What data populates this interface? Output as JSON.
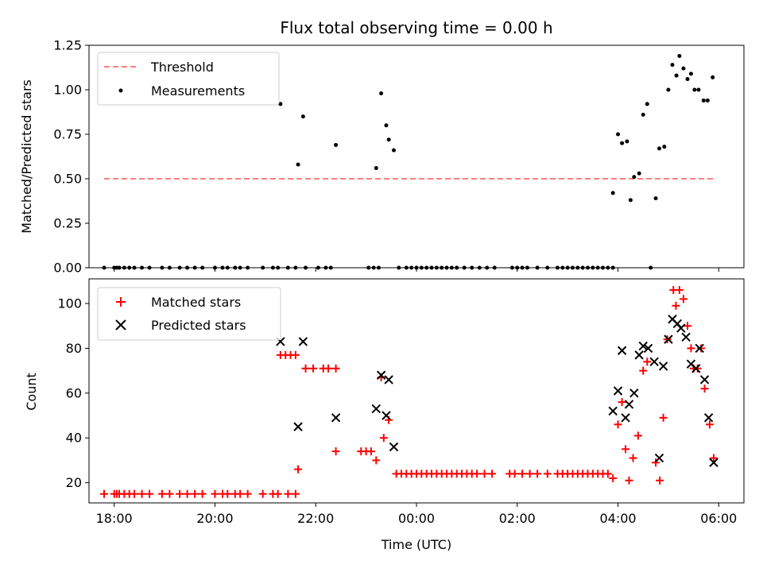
{
  "chart_data": [
    {
      "type": "scatter",
      "title": "Flux total observing time = 0.00 h",
      "ylabel": "Matched/Predicted stars",
      "xlabel": "",
      "xlim": [
        -6.5,
        6.5
      ],
      "ylim": [
        0,
        1.25
      ],
      "yticks": [
        0.0,
        0.25,
        0.5,
        0.75,
        1.0,
        1.25
      ],
      "ytick_labels": [
        "0.00",
        "0.25",
        "0.50",
        "0.75",
        "1.00",
        "1.25"
      ],
      "legend": [
        "Threshold",
        "Measurements"
      ],
      "legend_position": "top-left",
      "colors": {
        "threshold": "#ff7f7f",
        "measurements": "#000000"
      },
      "threshold": {
        "name": "Threshold",
        "y": 0.5,
        "x_range": [
          -6.2,
          5.9
        ]
      },
      "series": [
        {
          "name": "Measurements",
          "points": [
            [
              -6.2,
              0
            ],
            [
              -6.0,
              0
            ],
            [
              -5.95,
              0
            ],
            [
              -5.9,
              0
            ],
            [
              -5.8,
              0
            ],
            [
              -5.7,
              0
            ],
            [
              -5.6,
              0
            ],
            [
              -5.45,
              0
            ],
            [
              -5.3,
              0
            ],
            [
              -5.05,
              0
            ],
            [
              -4.9,
              0
            ],
            [
              -4.7,
              0
            ],
            [
              -4.55,
              0
            ],
            [
              -4.4,
              0
            ],
            [
              -4.25,
              0
            ],
            [
              -4.0,
              0
            ],
            [
              -3.85,
              0
            ],
            [
              -3.75,
              0
            ],
            [
              -3.6,
              0
            ],
            [
              -3.5,
              0
            ],
            [
              -3.35,
              0
            ],
            [
              -3.05,
              0
            ],
            [
              -2.85,
              0
            ],
            [
              -2.75,
              0
            ],
            [
              -2.55,
              0
            ],
            [
              -2.4,
              0
            ],
            [
              -2.2,
              0
            ],
            [
              -1.95,
              0
            ],
            [
              -1.8,
              0
            ],
            [
              -1.7,
              0
            ],
            [
              -2.7,
              0.92
            ],
            [
              -2.35,
              0.58
            ],
            [
              -2.25,
              0.85
            ],
            [
              -1.6,
              0.69
            ],
            [
              -0.95,
              0
            ],
            [
              -0.85,
              0
            ],
            [
              -0.75,
              0
            ],
            [
              -0.8,
              0.56
            ],
            [
              -0.7,
              0.98
            ],
            [
              -0.6,
              0.8
            ],
            [
              -0.55,
              0.72
            ],
            [
              -0.45,
              0.66
            ],
            [
              -0.35,
              0
            ],
            [
              -0.2,
              0
            ],
            [
              -0.1,
              0
            ],
            [
              0.0,
              0
            ],
            [
              0.1,
              0
            ],
            [
              0.2,
              0
            ],
            [
              0.3,
              0
            ],
            [
              0.4,
              0
            ],
            [
              0.5,
              0
            ],
            [
              0.6,
              0
            ],
            [
              0.7,
              0
            ],
            [
              0.8,
              0
            ],
            [
              0.95,
              0
            ],
            [
              1.1,
              0
            ],
            [
              1.25,
              0
            ],
            [
              1.4,
              0
            ],
            [
              1.55,
              0
            ],
            [
              1.9,
              0
            ],
            [
              2.0,
              0
            ],
            [
              2.1,
              0
            ],
            [
              2.2,
              0
            ],
            [
              2.4,
              0
            ],
            [
              2.6,
              0
            ],
            [
              2.8,
              0
            ],
            [
              2.9,
              0
            ],
            [
              3.0,
              0
            ],
            [
              3.1,
              0
            ],
            [
              3.2,
              0
            ],
            [
              3.3,
              0
            ],
            [
              3.4,
              0
            ],
            [
              3.5,
              0
            ],
            [
              3.6,
              0
            ],
            [
              3.7,
              0
            ],
            [
              3.8,
              0
            ],
            [
              3.9,
              0
            ],
            [
              3.9,
              0.42
            ],
            [
              4.0,
              0.75
            ],
            [
              4.08,
              0.7
            ],
            [
              4.18,
              0.71
            ],
            [
              4.25,
              0.38
            ],
            [
              4.32,
              0.51
            ],
            [
              4.42,
              0.53
            ],
            [
              4.5,
              0.86
            ],
            [
              4.58,
              0.92
            ],
            [
              4.65,
              0
            ],
            [
              4.75,
              0.39
            ],
            [
              4.82,
              0.67
            ],
            [
              4.92,
              0.68
            ],
            [
              5.0,
              1.0
            ],
            [
              5.08,
              1.14
            ],
            [
              5.16,
              1.08
            ],
            [
              5.22,
              1.19
            ],
            [
              5.3,
              1.12
            ],
            [
              5.38,
              1.06
            ],
            [
              5.45,
              1.09
            ],
            [
              5.52,
              1.0
            ],
            [
              5.6,
              1.0
            ],
            [
              5.7,
              0.94
            ],
            [
              5.78,
              0.94
            ],
            [
              5.88,
              1.07
            ]
          ]
        }
      ]
    },
    {
      "type": "scatter",
      "title": "",
      "xlabel": "Time (UTC)",
      "ylabel": "Count",
      "xlim": [
        -6.5,
        6.5
      ],
      "ylim": [
        11,
        111
      ],
      "xticks": [
        -6,
        -4,
        -2,
        0,
        2,
        4,
        6
      ],
      "xtick_labels": [
        "18:00",
        "20:00",
        "22:00",
        "00:00",
        "02:00",
        "04:00",
        "06:00"
      ],
      "yticks": [
        20,
        40,
        60,
        80,
        100
      ],
      "ytick_labels": [
        "20",
        "40",
        "60",
        "80",
        "100"
      ],
      "legend": [
        "Matched stars",
        "Predicted stars"
      ],
      "legend_position": "top-left",
      "colors": {
        "matched": "#ff0000",
        "predicted": "#000000"
      },
      "series": [
        {
          "name": "Matched stars",
          "marker": "+",
          "points": [
            [
              -6.2,
              15
            ],
            [
              -6.0,
              15
            ],
            [
              -5.95,
              15
            ],
            [
              -5.9,
              15
            ],
            [
              -5.8,
              15
            ],
            [
              -5.7,
              15
            ],
            [
              -5.6,
              15
            ],
            [
              -5.45,
              15
            ],
            [
              -5.3,
              15
            ],
            [
              -5.05,
              15
            ],
            [
              -4.9,
              15
            ],
            [
              -4.7,
              15
            ],
            [
              -4.55,
              15
            ],
            [
              -4.4,
              15
            ],
            [
              -4.25,
              15
            ],
            [
              -4.0,
              15
            ],
            [
              -3.85,
              15
            ],
            [
              -3.75,
              15
            ],
            [
              -3.6,
              15
            ],
            [
              -3.5,
              15
            ],
            [
              -3.35,
              15
            ],
            [
              -3.05,
              15
            ],
            [
              -2.85,
              15
            ],
            [
              -2.75,
              15
            ],
            [
              -2.55,
              15
            ],
            [
              -2.4,
              15
            ],
            [
              -2.7,
              77
            ],
            [
              -2.6,
              77
            ],
            [
              -2.5,
              77
            ],
            [
              -2.4,
              77
            ],
            [
              -2.35,
              26
            ],
            [
              -2.2,
              71
            ],
            [
              -2.05,
              71
            ],
            [
              -1.85,
              71
            ],
            [
              -1.75,
              71
            ],
            [
              -1.6,
              71
            ],
            [
              -1.6,
              34
            ],
            [
              -1.1,
              34
            ],
            [
              -1.0,
              34
            ],
            [
              -0.9,
              34
            ],
            [
              -0.8,
              30
            ],
            [
              -0.7,
              67
            ],
            [
              -0.65,
              40
            ],
            [
              -0.55,
              48
            ],
            [
              -0.4,
              24
            ],
            [
              -0.3,
              24
            ],
            [
              -0.2,
              24
            ],
            [
              -0.1,
              24
            ],
            [
              0.0,
              24
            ],
            [
              0.1,
              24
            ],
            [
              0.2,
              24
            ],
            [
              0.3,
              24
            ],
            [
              0.4,
              24
            ],
            [
              0.5,
              24
            ],
            [
              0.6,
              24
            ],
            [
              0.7,
              24
            ],
            [
              0.8,
              24
            ],
            [
              0.9,
              24
            ],
            [
              1.0,
              24
            ],
            [
              1.1,
              24
            ],
            [
              1.2,
              24
            ],
            [
              1.35,
              24
            ],
            [
              1.5,
              24
            ],
            [
              1.85,
              24
            ],
            [
              1.95,
              24
            ],
            [
              2.1,
              24
            ],
            [
              2.25,
              24
            ],
            [
              2.4,
              24
            ],
            [
              2.6,
              24
            ],
            [
              2.8,
              24
            ],
            [
              2.9,
              24
            ],
            [
              3.0,
              24
            ],
            [
              3.1,
              24
            ],
            [
              3.2,
              24
            ],
            [
              3.3,
              24
            ],
            [
              3.4,
              24
            ],
            [
              3.5,
              24
            ],
            [
              3.6,
              24
            ],
            [
              3.7,
              24
            ],
            [
              3.8,
              24
            ],
            [
              3.9,
              22
            ],
            [
              4.0,
              46
            ],
            [
              4.08,
              56
            ],
            [
              4.15,
              35
            ],
            [
              4.22,
              21
            ],
            [
              4.3,
              31
            ],
            [
              4.4,
              41
            ],
            [
              4.5,
              70
            ],
            [
              4.58,
              74
            ],
            [
              4.75,
              29
            ],
            [
              4.83,
              21
            ],
            [
              4.9,
              49
            ],
            [
              4.98,
              84
            ],
            [
              5.1,
              106
            ],
            [
              5.15,
              99
            ],
            [
              5.22,
              106
            ],
            [
              5.3,
              102
            ],
            [
              5.38,
              90
            ],
            [
              5.45,
              80
            ],
            [
              5.5,
              71
            ],
            [
              5.58,
              71
            ],
            [
              5.65,
              80
            ],
            [
              5.72,
              62
            ],
            [
              5.82,
              46
            ],
            [
              5.9,
              31
            ]
          ]
        },
        {
          "name": "Predicted stars",
          "marker": "x",
          "points": [
            [
              -2.7,
              83
            ],
            [
              -2.35,
              45
            ],
            [
              -2.25,
              83
            ],
            [
              -1.6,
              49
            ],
            [
              -0.8,
              53
            ],
            [
              -0.7,
              68
            ],
            [
              -0.6,
              50
            ],
            [
              -0.55,
              66
            ],
            [
              -0.45,
              36
            ],
            [
              3.9,
              52
            ],
            [
              4.0,
              61
            ],
            [
              4.08,
              79
            ],
            [
              4.15,
              49
            ],
            [
              4.22,
              55
            ],
            [
              4.32,
              60
            ],
            [
              4.42,
              77
            ],
            [
              4.5,
              81
            ],
            [
              4.6,
              80
            ],
            [
              4.72,
              74
            ],
            [
              4.82,
              31
            ],
            [
              4.9,
              72
            ],
            [
              5.0,
              84
            ],
            [
              5.08,
              93
            ],
            [
              5.18,
              91
            ],
            [
              5.25,
              89
            ],
            [
              5.35,
              85
            ],
            [
              5.45,
              73
            ],
            [
              5.55,
              71
            ],
            [
              5.62,
              80
            ],
            [
              5.72,
              66
            ],
            [
              5.8,
              49
            ],
            [
              5.9,
              29
            ]
          ]
        }
      ]
    }
  ]
}
